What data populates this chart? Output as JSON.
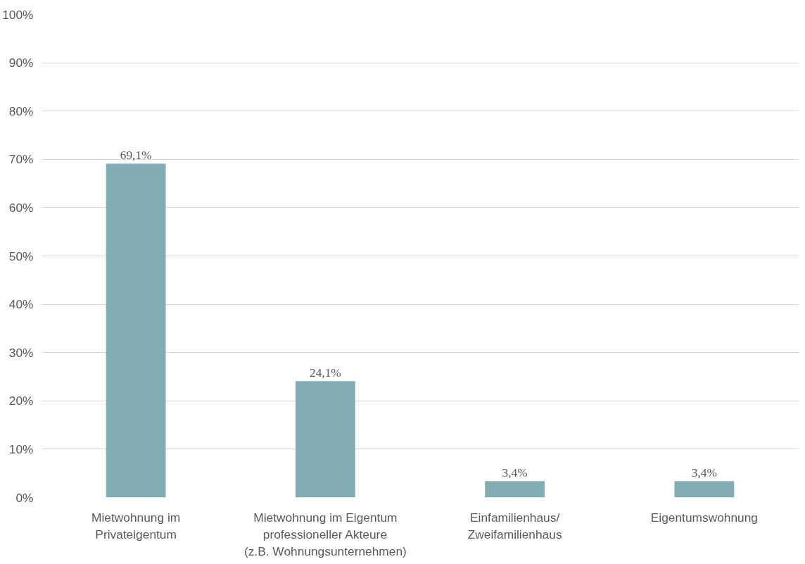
{
  "chart_data": {
    "type": "bar",
    "categories": [
      "Mietwohnung im\nPrivateigentum",
      "Mietwohnung im Eigentum\nprofessioneller Akteure\n(z.B. Wohnungsunternehmen)",
      "Einfamilienhaus/\nZweifamilienhaus",
      "Eigentumswohnung"
    ],
    "values": [
      69.1,
      24.1,
      3.4,
      3.4
    ],
    "value_labels": [
      "69,1%",
      "24,1%",
      "3,4%",
      "3,4%"
    ],
    "color": "#82adb3",
    "ylim": [
      0,
      100
    ],
    "yticks": [
      {
        "value": 0,
        "label": "0%"
      },
      {
        "value": 10,
        "label": "10%"
      },
      {
        "value": 20,
        "label": "20%"
      },
      {
        "value": 30,
        "label": "30%"
      },
      {
        "value": 40,
        "label": "40%"
      },
      {
        "value": 50,
        "label": "50%"
      },
      {
        "value": 60,
        "label": "60%"
      },
      {
        "value": 70,
        "label": "70%"
      },
      {
        "value": 80,
        "label": "80%"
      },
      {
        "value": 90,
        "label": "90%"
      },
      {
        "value": 100,
        "label": "100%"
      }
    ],
    "grid": "y"
  }
}
